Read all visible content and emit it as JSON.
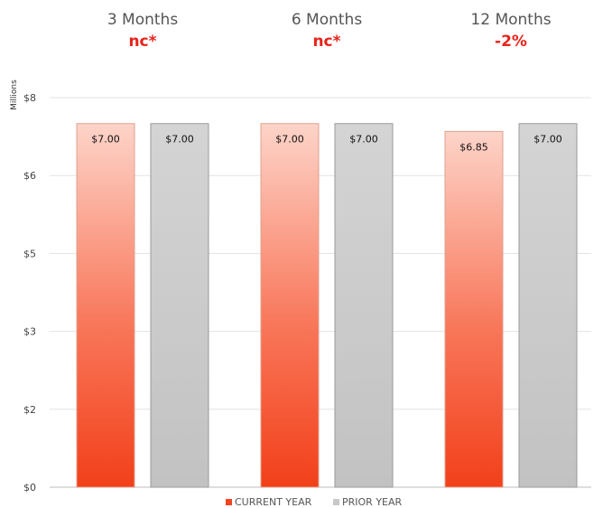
{
  "chart_data": {
    "type": "bar",
    "categories": [
      "3 Months",
      "6 Months",
      "12 Months"
    ],
    "changes": [
      "nc*",
      "nc*",
      "-2%"
    ],
    "series": [
      {
        "name": "CURRENT YEAR",
        "values": [
          7.0,
          7.0,
          6.85
        ],
        "labels": [
          "$7.00",
          "$7.00",
          "$6.85"
        ],
        "color": "#f4431f",
        "color_top": "#fdd4c9"
      },
      {
        "name": "PRIOR YEAR",
        "values": [
          7.0,
          7.0,
          7.0
        ],
        "labels": [
          "$7.00",
          "$7.00",
          "$7.00"
        ],
        "color": "#c8c8c8",
        "stroke": "#9a9a9a"
      }
    ],
    "ylabel": "Millions",
    "ytick_labels": [
      "$0",
      "$2",
      "$3",
      "$5",
      "$6",
      "$8"
    ],
    "ytick_values": [
      0,
      1.5,
      3,
      4.5,
      6,
      7.5
    ],
    "ylim": [
      0,
      7.5
    ],
    "grid": true,
    "legend": "bottom",
    "change_color": "#e8231b"
  }
}
